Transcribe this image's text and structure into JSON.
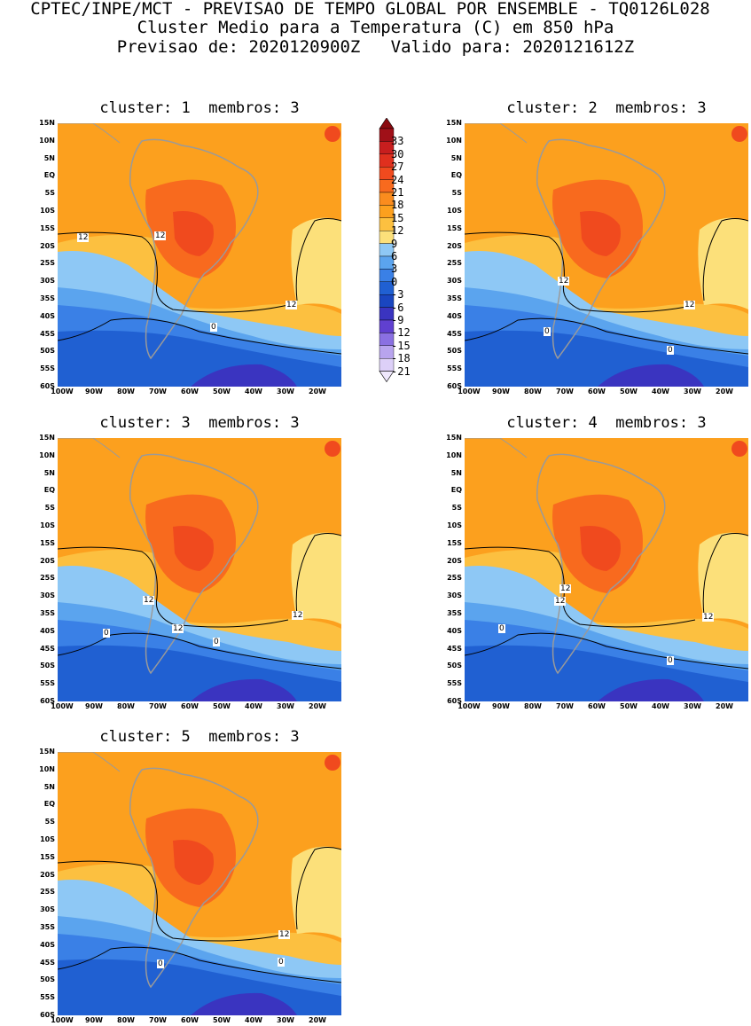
{
  "header": {
    "line1": "CPTEC/INPE/MCT - PREVISAO DE TEMPO GLOBAL POR ENSEMBLE - TQ0126L028",
    "line2": "Cluster Medio para a Temperatura (C) em 850 hPa",
    "line3": "Previsao de: 2020120900Z   Valido para: 2020121612Z"
  },
  "panels": [
    {
      "title": "cluster: 1  membros: 3",
      "contour_labels": [
        "12",
        "12",
        "12",
        "0"
      ]
    },
    {
      "title": "cluster: 2  membros: 3",
      "contour_labels": [
        "12",
        "12",
        "0",
        "0"
      ]
    },
    {
      "title": "cluster: 3  membros: 3",
      "contour_labels": [
        "12",
        "12",
        "12",
        "0",
        "0"
      ]
    },
    {
      "title": "cluster: 4  membros: 3",
      "contour_labels": [
        "12",
        "12",
        "12",
        "0",
        "0"
      ]
    },
    {
      "title": "cluster: 5  membros: 3",
      "contour_labels": [
        "12",
        "0",
        "0"
      ]
    }
  ],
  "axes": {
    "lat_labels": [
      "15N",
      "10N",
      "5N",
      "EQ",
      "5S",
      "10S",
      "15S",
      "20S",
      "25S",
      "30S",
      "35S",
      "40S",
      "45S",
      "50S",
      "55S",
      "60S"
    ],
    "lon_labels": [
      "100W",
      "90W",
      "80W",
      "70W",
      "60W",
      "50W",
      "40W",
      "30W",
      "20W"
    ]
  },
  "colorbar": {
    "labels": [
      "33",
      "30",
      "27",
      "24",
      "21",
      "18",
      "15",
      "12",
      "9",
      "6",
      "3",
      "0",
      "-3",
      "-6",
      "-9",
      "-12",
      "-15",
      "-18",
      "-21"
    ],
    "colors": [
      "#a01018",
      "#c81e1e",
      "#e0301e",
      "#f04a1e",
      "#f86a1e",
      "#fa8c1e",
      "#fca01e",
      "#fcc040",
      "#fce07a",
      "#8ec8f5",
      "#5ba4ee",
      "#3a80e6",
      "#2060d2",
      "#1a46c0",
      "#3a34c0",
      "#6040d0",
      "#8a70e2",
      "#b8a4ee",
      "#ddd0f8"
    ],
    "top_color": "#8a0a10",
    "bottom_color": "#efe8fc"
  },
  "colors": {
    "land_outline": "#9a9a9a",
    "contour": "#000000"
  }
}
